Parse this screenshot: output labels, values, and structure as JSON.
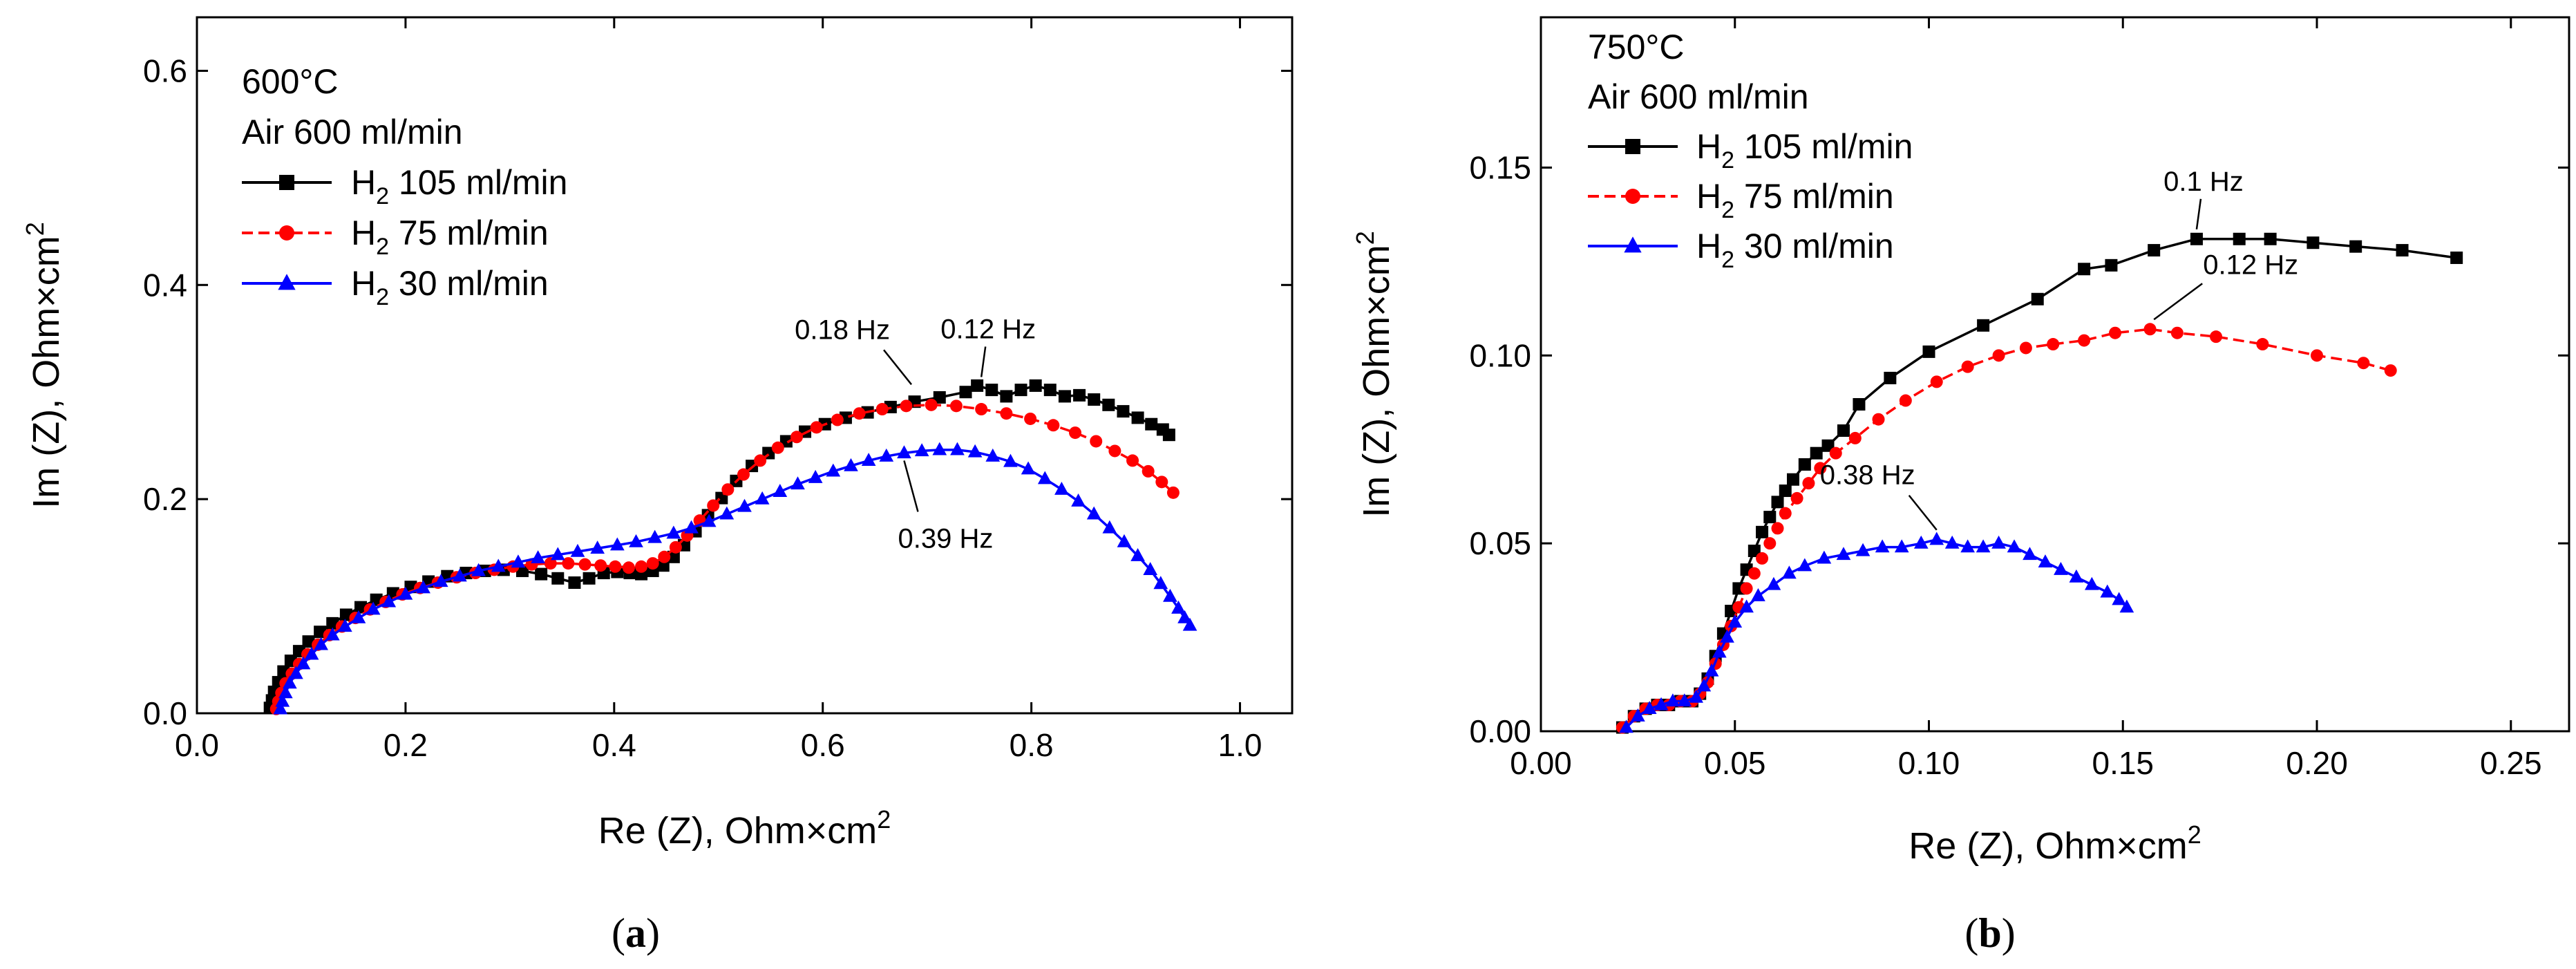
{
  "chart_data": [
    {
      "type": "scatter",
      "panel_id": "a",
      "caption": "a",
      "title": "",
      "xlabel": "Re (Z), Ohm×cm",
      "ylabel": "Im (Z), Ohm×cm",
      "label_superscript": "2",
      "xlim": [
        0.0,
        1.05
      ],
      "ylim": [
        0.0,
        0.65
      ],
      "xticks": [
        "0.0",
        "0.2",
        "0.4",
        "0.6",
        "0.8",
        "1.0"
      ],
      "xtick_values": [
        0.0,
        0.2,
        0.4,
        0.6,
        0.8,
        1.0
      ],
      "yticks": [
        "0.0",
        "0.2",
        "0.4",
        "0.6"
      ],
      "ytick_values": [
        0.0,
        0.2,
        0.4,
        0.6
      ],
      "info_lines": [
        "600°C",
        "Air 600 ml/min"
      ],
      "legend_position": "top-left",
      "series": [
        {
          "name": "H2 105 ml/min",
          "label_main": "H",
          "label_sub": "2",
          "label_rest": " 105 ml/min",
          "color": "#000000",
          "marker": "square",
          "dashed": false,
          "x": [
            0.07,
            0.072,
            0.074,
            0.078,
            0.083,
            0.09,
            0.098,
            0.107,
            0.118,
            0.13,
            0.143,
            0.157,
            0.172,
            0.188,
            0.205,
            0.222,
            0.24,
            0.258,
            0.276,
            0.294,
            0.312,
            0.33,
            0.346,
            0.362,
            0.376,
            0.39,
            0.403,
            0.415,
            0.426,
            0.437,
            0.447,
            0.457,
            0.467,
            0.478,
            0.49,
            0.503,
            0.517,
            0.532,
            0.548,
            0.565,
            0.583,
            0.602,
            0.622,
            0.643,
            0.665,
            0.688,
            0.712,
            0.737,
            0.748,
            0.762,
            0.776,
            0.79,
            0.804,
            0.818,
            0.832,
            0.846,
            0.86,
            0.874,
            0.888,
            0.902,
            0.915,
            0.926,
            0.932
          ],
          "y": [
            0.005,
            0.012,
            0.02,
            0.029,
            0.039,
            0.049,
            0.058,
            0.067,
            0.076,
            0.084,
            0.092,
            0.099,
            0.106,
            0.112,
            0.118,
            0.123,
            0.128,
            0.131,
            0.133,
            0.134,
            0.133,
            0.13,
            0.126,
            0.122,
            0.126,
            0.131,
            0.132,
            0.131,
            0.13,
            0.133,
            0.138,
            0.146,
            0.157,
            0.17,
            0.185,
            0.201,
            0.217,
            0.231,
            0.243,
            0.254,
            0.263,
            0.27,
            0.276,
            0.281,
            0.286,
            0.291,
            0.295,
            0.3,
            0.306,
            0.302,
            0.296,
            0.302,
            0.306,
            0.302,
            0.296,
            0.297,
            0.293,
            0.288,
            0.282,
            0.276,
            0.27,
            0.265,
            0.26
          ]
        },
        {
          "name": "H2 75 ml/min",
          "label_main": "H",
          "label_sub": "2",
          "label_rest": " 75 ml/min",
          "color": "#ff0000",
          "marker": "circle",
          "dashed": true,
          "x": [
            0.076,
            0.078,
            0.081,
            0.085,
            0.091,
            0.098,
            0.106,
            0.116,
            0.127,
            0.139,
            0.152,
            0.166,
            0.181,
            0.197,
            0.214,
            0.231,
            0.249,
            0.267,
            0.285,
            0.303,
            0.321,
            0.339,
            0.356,
            0.372,
            0.387,
            0.401,
            0.414,
            0.426,
            0.437,
            0.448,
            0.459,
            0.47,
            0.482,
            0.495,
            0.509,
            0.524,
            0.54,
            0.557,
            0.575,
            0.594,
            0.614,
            0.635,
            0.657,
            0.68,
            0.704,
            0.728,
            0.752,
            0.776,
            0.799,
            0.821,
            0.842,
            0.862,
            0.88,
            0.897,
            0.912,
            0.925,
            0.936
          ],
          "y": [
            0.004,
            0.011,
            0.019,
            0.028,
            0.037,
            0.046,
            0.055,
            0.064,
            0.073,
            0.081,
            0.089,
            0.097,
            0.104,
            0.111,
            0.117,
            0.122,
            0.127,
            0.131,
            0.134,
            0.137,
            0.139,
            0.14,
            0.14,
            0.139,
            0.138,
            0.137,
            0.136,
            0.137,
            0.14,
            0.146,
            0.155,
            0.166,
            0.18,
            0.194,
            0.209,
            0.223,
            0.236,
            0.248,
            0.258,
            0.267,
            0.274,
            0.28,
            0.284,
            0.287,
            0.288,
            0.287,
            0.284,
            0.28,
            0.275,
            0.269,
            0.262,
            0.254,
            0.245,
            0.236,
            0.226,
            0.216,
            0.206
          ]
        },
        {
          "name": "H2 30 ml/min",
          "label_main": "H",
          "label_sub": "2",
          "label_rest": " 30 ml/min",
          "color": "#0000ff",
          "marker": "triangle",
          "dashed": false,
          "x": [
            0.08,
            0.082,
            0.085,
            0.089,
            0.095,
            0.102,
            0.11,
            0.119,
            0.13,
            0.142,
            0.155,
            0.169,
            0.184,
            0.2,
            0.217,
            0.234,
            0.252,
            0.27,
            0.289,
            0.308,
            0.327,
            0.346,
            0.365,
            0.384,
            0.403,
            0.421,
            0.439,
            0.457,
            0.474,
            0.491,
            0.508,
            0.525,
            0.542,
            0.559,
            0.576,
            0.593,
            0.61,
            0.627,
            0.644,
            0.661,
            0.678,
            0.695,
            0.712,
            0.729,
            0.746,
            0.763,
            0.78,
            0.797,
            0.813,
            0.829,
            0.845,
            0.86,
            0.875,
            0.889,
            0.902,
            0.914,
            0.924,
            0.933,
            0.941,
            0.947,
            0.952
          ],
          "y": [
            0.004,
            0.011,
            0.019,
            0.028,
            0.037,
            0.046,
            0.055,
            0.064,
            0.073,
            0.081,
            0.089,
            0.097,
            0.104,
            0.111,
            0.117,
            0.123,
            0.128,
            0.133,
            0.137,
            0.141,
            0.145,
            0.148,
            0.151,
            0.154,
            0.157,
            0.16,
            0.164,
            0.168,
            0.173,
            0.179,
            0.186,
            0.193,
            0.2,
            0.207,
            0.214,
            0.22,
            0.226,
            0.231,
            0.236,
            0.24,
            0.243,
            0.245,
            0.246,
            0.246,
            0.244,
            0.24,
            0.235,
            0.228,
            0.219,
            0.209,
            0.198,
            0.186,
            0.173,
            0.16,
            0.147,
            0.134,
            0.121,
            0.109,
            0.098,
            0.089,
            0.082
          ]
        }
      ],
      "annotations": [
        {
          "text": "0.18 Hz",
          "x": 0.685,
          "y": 0.298,
          "side": "left-above"
        },
        {
          "text": "0.12 Hz",
          "x": 0.752,
          "y": 0.305,
          "side": "above"
        },
        {
          "text": "0.39 Hz",
          "x": 0.678,
          "y": 0.245,
          "side": "below"
        }
      ]
    },
    {
      "type": "scatter",
      "panel_id": "b",
      "caption": "b",
      "title": "",
      "xlabel": "Re (Z), Ohm×cm",
      "ylabel": "Im (Z), Ohm×cm",
      "label_superscript": "2",
      "xlim": [
        0.0,
        0.265
      ],
      "ylim": [
        0.0,
        0.19
      ],
      "xticks": [
        "0.00",
        "0.05",
        "0.10",
        "0.15",
        "0.20",
        "0.25"
      ],
      "xtick_values": [
        0.0,
        0.05,
        0.1,
        0.15,
        0.2,
        0.25
      ],
      "yticks": [
        "0.00",
        "0.05",
        "0.10",
        "0.15"
      ],
      "ytick_values": [
        0.0,
        0.05,
        0.1,
        0.15
      ],
      "info_lines": [
        "750°C",
        "Air 600 ml/min"
      ],
      "legend_position": "top-left",
      "series": [
        {
          "name": "H2 105 ml/min",
          "label_main": "H",
          "label_sub": "2",
          "label_rest": " 105 ml/min",
          "color": "#000000",
          "marker": "square",
          "dashed": false,
          "x": [
            0.021,
            0.024,
            0.027,
            0.03,
            0.033,
            0.036,
            0.039,
            0.041,
            0.043,
            0.045,
            0.047,
            0.049,
            0.051,
            0.053,
            0.055,
            0.057,
            0.059,
            0.061,
            0.063,
            0.065,
            0.068,
            0.071,
            0.074,
            0.078,
            0.082,
            0.09,
            0.1,
            0.114,
            0.128,
            0.14,
            0.147,
            0.158,
            0.169,
            0.18,
            0.188,
            0.199,
            0.21,
            0.222,
            0.236
          ],
          "y": [
            0.001,
            0.004,
            0.006,
            0.007,
            0.007,
            0.008,
            0.008,
            0.01,
            0.014,
            0.02,
            0.026,
            0.032,
            0.038,
            0.043,
            0.048,
            0.053,
            0.057,
            0.061,
            0.064,
            0.067,
            0.071,
            0.074,
            0.076,
            0.08,
            0.087,
            0.094,
            0.101,
            0.108,
            0.115,
            0.123,
            0.124,
            0.128,
            0.131,
            0.131,
            0.131,
            0.13,
            0.129,
            0.128,
            0.126
          ]
        },
        {
          "name": "H2 75 ml/min",
          "label_main": "H",
          "label_sub": "2",
          "label_rest": " 75 ml/min",
          "color": "#ff0000",
          "marker": "circle",
          "dashed": true,
          "x": [
            0.021,
            0.024,
            0.027,
            0.03,
            0.033,
            0.036,
            0.039,
            0.041,
            0.043,
            0.045,
            0.047,
            0.049,
            0.051,
            0.053,
            0.055,
            0.057,
            0.059,
            0.061,
            0.063,
            0.066,
            0.069,
            0.072,
            0.076,
            0.081,
            0.087,
            0.094,
            0.102,
            0.11,
            0.118,
            0.125,
            0.132,
            0.14,
            0.148,
            0.157,
            0.164,
            0.174,
            0.186,
            0.2,
            0.212,
            0.219
          ],
          "y": [
            0.001,
            0.004,
            0.006,
            0.007,
            0.007,
            0.008,
            0.008,
            0.01,
            0.013,
            0.018,
            0.023,
            0.028,
            0.033,
            0.038,
            0.042,
            0.046,
            0.05,
            0.054,
            0.058,
            0.062,
            0.066,
            0.07,
            0.074,
            0.078,
            0.083,
            0.088,
            0.093,
            0.097,
            0.1,
            0.102,
            0.103,
            0.104,
            0.106,
            0.107,
            0.106,
            0.105,
            0.103,
            0.1,
            0.098,
            0.096
          ]
        },
        {
          "name": "H2 30 ml/min",
          "label_main": "H",
          "label_sub": "2",
          "label_rest": " 30 ml/min",
          "color": "#0000ff",
          "marker": "triangle",
          "dashed": false,
          "x": [
            0.022,
            0.025,
            0.028,
            0.031,
            0.034,
            0.037,
            0.04,
            0.042,
            0.044,
            0.046,
            0.048,
            0.05,
            0.053,
            0.056,
            0.06,
            0.064,
            0.068,
            0.073,
            0.078,
            0.083,
            0.088,
            0.093,
            0.098,
            0.102,
            0.106,
            0.11,
            0.114,
            0.118,
            0.122,
            0.126,
            0.13,
            0.134,
            0.138,
            0.142,
            0.146,
            0.149,
            0.151
          ],
          "y": [
            0.001,
            0.004,
            0.006,
            0.007,
            0.008,
            0.008,
            0.009,
            0.012,
            0.016,
            0.021,
            0.025,
            0.029,
            0.033,
            0.036,
            0.039,
            0.042,
            0.044,
            0.046,
            0.047,
            0.048,
            0.049,
            0.049,
            0.05,
            0.051,
            0.05,
            0.049,
            0.049,
            0.05,
            0.049,
            0.047,
            0.045,
            0.043,
            0.041,
            0.039,
            0.037,
            0.035,
            0.033
          ]
        }
      ],
      "annotations": [
        {
          "text": "0.1 Hz",
          "x": 0.169,
          "y": 0.131,
          "side": "above"
        },
        {
          "text": "0.12 Hz",
          "x": 0.158,
          "y": 0.107,
          "side": "right-above"
        },
        {
          "text": "0.38 Hz",
          "x": 0.102,
          "y": 0.051,
          "side": "left-above"
        }
      ]
    }
  ]
}
